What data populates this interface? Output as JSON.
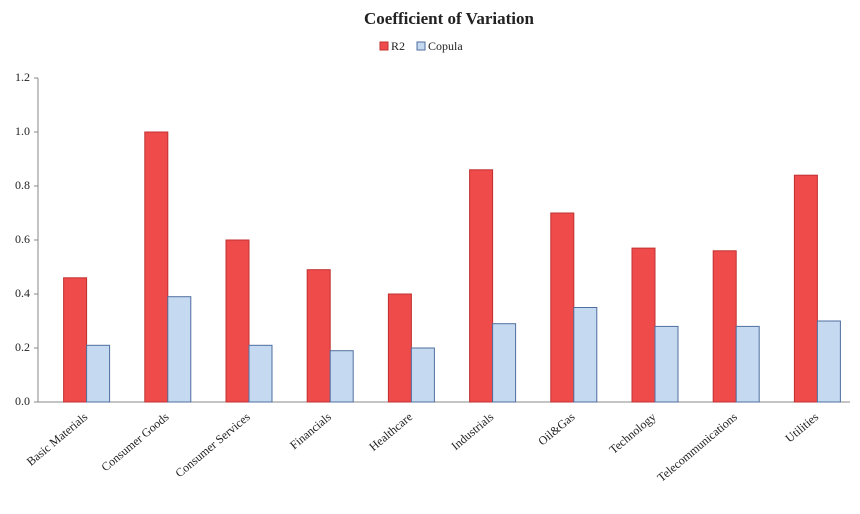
{
  "chart_data": {
    "type": "bar",
    "title": "Coefficient of Variation",
    "categories": [
      "Basic Materials",
      "Consumer Goods",
      "Consumer Services",
      "Financials",
      "Healthcare",
      "Industrials",
      "Oil&Gas",
      "Technology",
      "Telecommunications",
      "Utilities"
    ],
    "series": [
      {
        "name": "R2",
        "color": "#ef4b4b",
        "values": [
          0.46,
          1.0,
          0.6,
          0.49,
          0.4,
          0.86,
          0.7,
          0.57,
          0.56,
          0.84
        ]
      },
      {
        "name": "Copula",
        "color": "#c5d9f1",
        "values": [
          0.21,
          0.39,
          0.21,
          0.19,
          0.2,
          0.29,
          0.35,
          0.28,
          0.28,
          0.3
        ]
      }
    ],
    "ylim": [
      0,
      1.2
    ],
    "yticks": [
      {
        "value": 0,
        "label": "0.0"
      },
      0.2,
      0.4,
      0.6,
      0.8,
      {
        "value": 1,
        "label": "1.0"
      },
      1.2
    ],
    "grid": false,
    "legend": "top"
  }
}
